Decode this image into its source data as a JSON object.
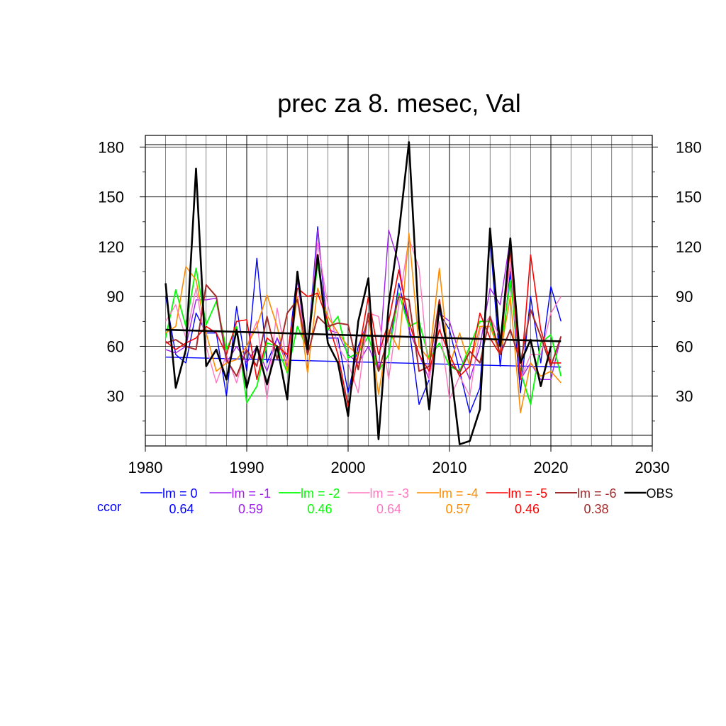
{
  "chart_data": {
    "type": "line",
    "title": "prec za 8. mesec, Val",
    "xlabel": "",
    "ylabel": "",
    "xlim": [
      1980,
      2030
    ],
    "ylim": [
      0,
      187
    ],
    "xticks": [
      1980,
      1990,
      2000,
      2010,
      2020,
      2030
    ],
    "yticks": [
      30,
      60,
      90,
      120,
      150,
      180
    ],
    "grid": true,
    "years": [
      1982,
      1983,
      1984,
      1985,
      1986,
      1987,
      1988,
      1989,
      1990,
      1991,
      1992,
      1993,
      1994,
      1995,
      1996,
      1997,
      1998,
      1999,
      2000,
      2001,
      2002,
      2003,
      2004,
      2005,
      2006,
      2007,
      2008,
      2009,
      2010,
      2011,
      2012,
      2013,
      2014,
      2015,
      2016,
      2017,
      2018,
      2019,
      2020,
      2021
    ],
    "ccor_label": "ccor",
    "series": [
      {
        "name": "lm = 0",
        "color": "#0000ff",
        "width": 1.4,
        "ccor": "0.64",
        "values": [
          90,
          55,
          50,
          80,
          68,
          68,
          30,
          84,
          45,
          113,
          50,
          65,
          52,
          105,
          58,
          132,
          65,
          65,
          32,
          60,
          76,
          45,
          55,
          98,
          72,
          25,
          40,
          80,
          70,
          45,
          20,
          35,
          125,
          48,
          105,
          32,
          90,
          50,
          96,
          75
        ],
        "trend": [
          53.5,
          47.5
        ]
      },
      {
        "name": "lm = -1",
        "color": "#a020f0",
        "width": 1.4,
        "ccor": "0.59",
        "values": [
          58,
          56,
          60,
          88,
          88,
          89,
          50,
          60,
          50,
          60,
          45,
          65,
          48,
          100,
          55,
          130,
          70,
          68,
          55,
          50,
          60,
          45,
          130,
          110,
          70,
          55,
          40,
          80,
          75,
          55,
          40,
          60,
          95,
          85,
          125,
          40,
          50,
          40,
          40,
          66
        ]
      },
      {
        "name": "lm = -2",
        "color": "#00ff00",
        "width": 1.8,
        "ccor": "0.46",
        "values": [
          65,
          94,
          72,
          107,
          73,
          87,
          58,
          72,
          26,
          36,
          62,
          60,
          44,
          72,
          58,
          110,
          70,
          78,
          53,
          56,
          66,
          45,
          55,
          92,
          72,
          75,
          52,
          62,
          48,
          45,
          60,
          75,
          75,
          55,
          100,
          45,
          25,
          62,
          67,
          42
        ]
      },
      {
        "name": "lm = -3",
        "color": "#ff77c0",
        "width": 1.4,
        "ccor": "0.64",
        "values": [
          75,
          85,
          65,
          95,
          60,
          38,
          55,
          38,
          60,
          75,
          28,
          83,
          50,
          90,
          60,
          122,
          85,
          60,
          50,
          32,
          80,
          78,
          40,
          85,
          125,
          107,
          40,
          75,
          28,
          42,
          30,
          70,
          78,
          65,
          110,
          40,
          55,
          55,
          80,
          90
        ]
      },
      {
        "name": "lm = -4",
        "color": "#ff8c00",
        "width": 1.6,
        "ccor": "0.57",
        "values": [
          68,
          72,
          108,
          100,
          68,
          45,
          50,
          52,
          60,
          72,
          91,
          72,
          45,
          90,
          44,
          95,
          78,
          68,
          60,
          55,
          78,
          31,
          70,
          58,
          128,
          60,
          52,
          107,
          48,
          68,
          48,
          72,
          72,
          55,
          90,
          20,
          50,
          42,
          45,
          38
        ]
      },
      {
        "name": "lm = -5",
        "color": "#ff0000",
        "width": 1.6,
        "ccor": "0.46",
        "values": [
          63,
          58,
          62,
          65,
          72,
          68,
          55,
          75,
          76,
          40,
          65,
          60,
          55,
          95,
          90,
          92,
          75,
          55,
          24,
          55,
          90,
          55,
          75,
          106,
          75,
          55,
          45,
          70,
          55,
          42,
          48,
          80,
          65,
          55,
          120,
          40,
          115,
          70,
          50,
          50
        ]
      },
      {
        "name": "lm = -6",
        "color": "#a52a2a",
        "width": 2.0,
        "ccor": "0.38",
        "values": [
          62,
          64,
          60,
          58,
          97,
          90,
          52,
          42,
          58,
          48,
          78,
          52,
          80,
          88,
          55,
          78,
          72,
          74,
          73,
          46,
          80,
          45,
          66,
          90,
          88,
          45,
          48,
          88,
          50,
          44,
          57,
          50,
          78,
          55,
          70,
          50,
          82,
          66,
          48,
          66
        ]
      },
      {
        "name": "OBS",
        "color": "#000000",
        "width": 2.6,
        "ccor": "",
        "values": [
          98,
          35,
          58,
          167,
          48,
          58,
          40,
          70,
          35,
          60,
          37,
          60,
          28,
          105,
          58,
          115,
          62,
          50,
          18,
          75,
          101,
          4,
          85,
          128,
          183,
          72,
          22,
          85,
          52,
          1,
          3,
          22,
          131,
          60,
          125,
          50,
          64,
          36,
          60,
          null
        ],
        "trend": [
          70,
          63
        ]
      }
    ]
  }
}
